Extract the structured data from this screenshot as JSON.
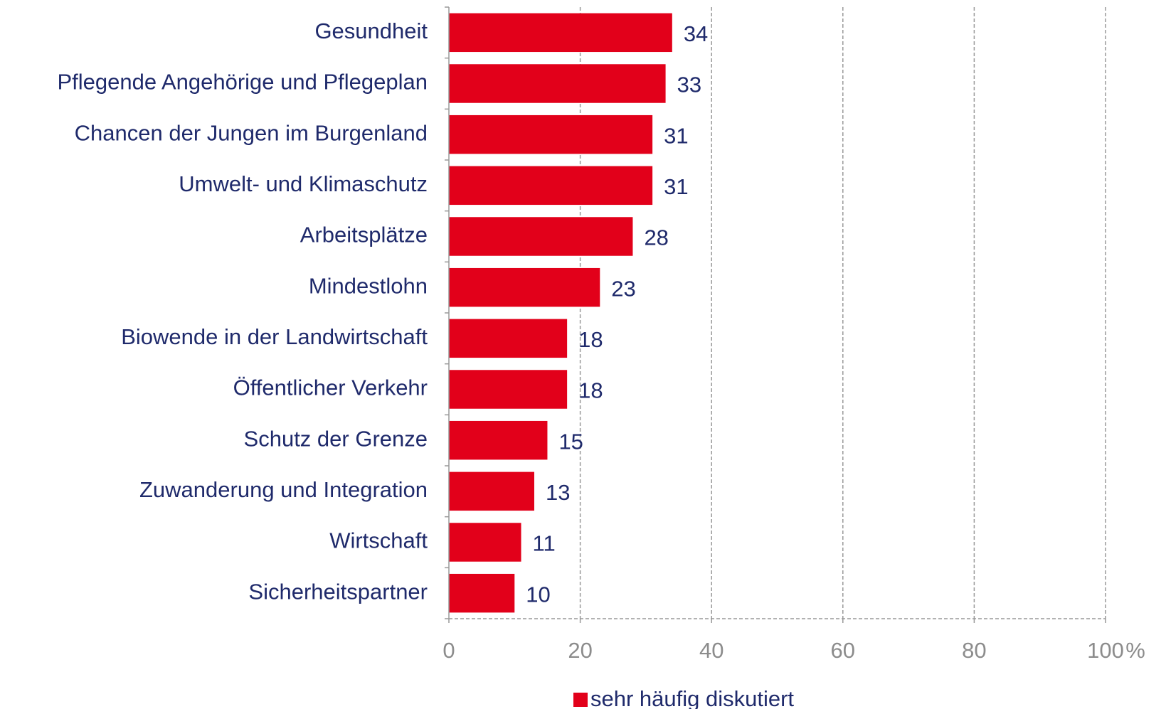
{
  "chart_data": {
    "type": "bar",
    "orientation": "horizontal",
    "categories": [
      "Gesundheit",
      "Pflegende Angehörige und Pflegeplan",
      "Chancen der Jungen im Burgenland",
      "Umwelt- und Klimaschutz",
      "Arbeitsplätze",
      "Mindestlohn",
      "Biowende in der Landwirtschaft",
      "Öffentlicher Verkehr",
      "Schutz der Grenze",
      "Zuwanderung und Integration",
      "Wirtschaft",
      "Sicherheitspartner"
    ],
    "series": [
      {
        "name": "sehr häufig diskutiert",
        "color": "#e2001a",
        "values": [
          34,
          33,
          31,
          31,
          28,
          23,
          18,
          18,
          15,
          13,
          11,
          10
        ]
      }
    ],
    "xlim": [
      0,
      100
    ],
    "xticks": [
      0,
      20,
      40,
      60,
      80,
      100
    ],
    "xlabel": "%",
    "grid": true,
    "legend": "bottom"
  }
}
